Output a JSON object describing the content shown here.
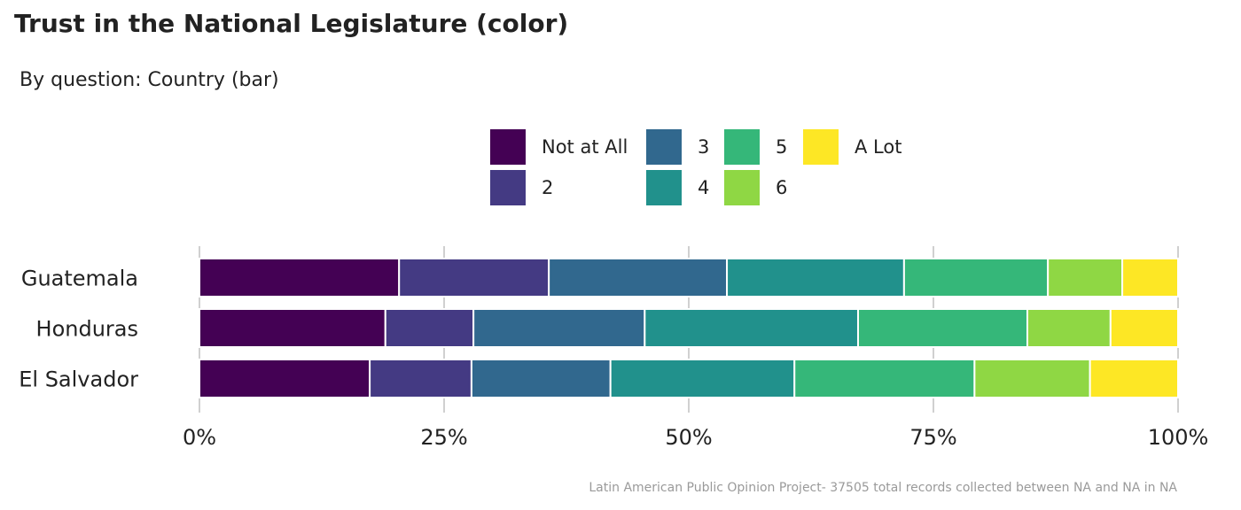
{
  "title": "Trust in the National Legislature (color)",
  "subtitle": "By question: Country (bar)",
  "caption": "Latin American Public Opinion Project- 37505 total records collected between NA and NA in  NA",
  "legend": {
    "items": [
      {
        "label": "Not at All",
        "color": "#440154"
      },
      {
        "label": "2",
        "color": "#443a83"
      },
      {
        "label": "3",
        "color": "#31688e"
      },
      {
        "label": "4",
        "color": "#21918c"
      },
      {
        "label": "5",
        "color": "#35b779"
      },
      {
        "label": "6",
        "color": "#8fd744"
      },
      {
        "label": "A Lot",
        "color": "#fde725"
      }
    ]
  },
  "chart_data": {
    "type": "bar",
    "orientation": "horizontal",
    "stacked": "percent",
    "categories": [
      "Guatemala",
      "Honduras",
      "El Salvador"
    ],
    "series": [
      {
        "name": "Not at All",
        "values": [
          20.4,
          19.0,
          17.4
        ]
      },
      {
        "name": "2",
        "values": [
          15.3,
          9.0,
          10.4
        ]
      },
      {
        "name": "3",
        "values": [
          18.2,
          17.5,
          14.2
        ]
      },
      {
        "name": "4",
        "values": [
          18.1,
          21.8,
          18.8
        ]
      },
      {
        "name": "5",
        "values": [
          14.7,
          17.3,
          18.4
        ]
      },
      {
        "name": "6",
        "values": [
          7.6,
          8.5,
          11.8
        ]
      },
      {
        "name": "A Lot",
        "values": [
          5.7,
          6.9,
          9.0
        ]
      }
    ],
    "xticks": [
      "0%",
      "25%",
      "50%",
      "75%",
      "100%"
    ],
    "xlim": [
      0,
      100
    ],
    "grid": "vertical",
    "legend_position": "top"
  }
}
